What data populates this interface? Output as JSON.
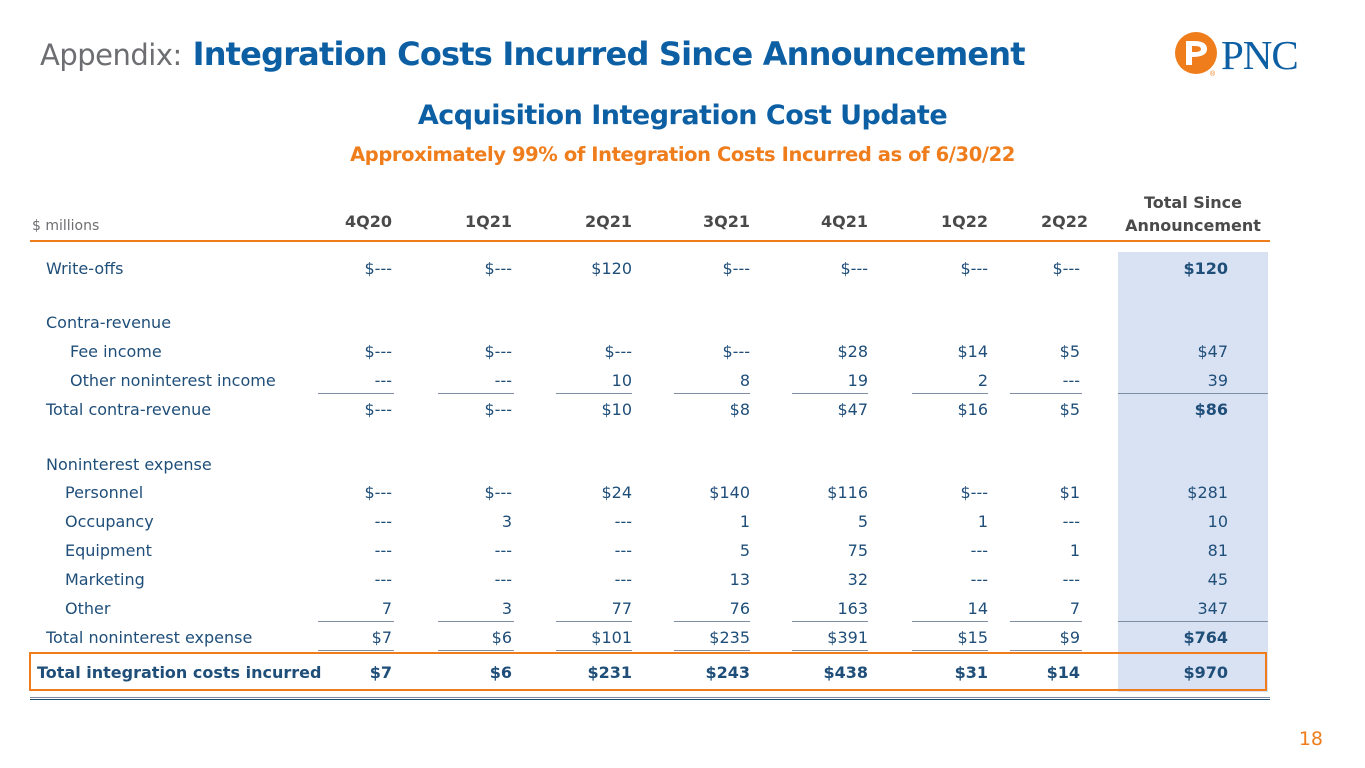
{
  "header": {
    "prefix": "Appendix:",
    "title": "Integration Costs Incurred Since Announcement",
    "logo_text": "PNC",
    "logo_reg": "®"
  },
  "subtitle": "Acquisition Integration Cost Update",
  "subsubtitle": "Approximately 99% of Integration Costs Incurred as of 6/30/22",
  "units": "$ millions",
  "columns": [
    "4Q20",
    "1Q21",
    "2Q21",
    "3Q21",
    "4Q21",
    "1Q22",
    "2Q22"
  ],
  "total_header": [
    "Total Since",
    "Announcement"
  ],
  "rows": {
    "write_offs": {
      "label": "Write-offs",
      "values": [
        "$---",
        "$---",
        "$120",
        "$---",
        "$---",
        "$---",
        "$---"
      ],
      "total": "$120"
    },
    "contra_revenue": {
      "label": "Contra-revenue"
    },
    "fee_income": {
      "label": "Fee income",
      "values": [
        "$---",
        "$---",
        "$---",
        "$---",
        "$28",
        "$14",
        "$5"
      ],
      "total": "$47"
    },
    "other_nonint_income": {
      "label": "Other noninterest income",
      "values": [
        "---",
        "---",
        "10",
        "8",
        "19",
        "2",
        "---"
      ],
      "total": "39"
    },
    "total_contra": {
      "label": "Total contra-revenue",
      "values": [
        "$---",
        "$---",
        "$10",
        "$8",
        "$47",
        "$16",
        "$5"
      ],
      "total": "$86"
    },
    "nonint_expense": {
      "label": "Noninterest expense"
    },
    "personnel": {
      "label": "Personnel",
      "values": [
        "$---",
        "$---",
        "$24",
        "$140",
        "$116",
        "$---",
        "$1"
      ],
      "total": "$281"
    },
    "occupancy": {
      "label": "Occupancy",
      "values": [
        "---",
        "3",
        "---",
        "1",
        "5",
        "1",
        "---"
      ],
      "total": "10"
    },
    "equipment": {
      "label": "Equipment",
      "values": [
        "---",
        "---",
        "---",
        "5",
        "75",
        "---",
        "1"
      ],
      "total": "81"
    },
    "marketing": {
      "label": "Marketing",
      "values": [
        "---",
        "---",
        "---",
        "13",
        "32",
        "---",
        "---"
      ],
      "total": "45"
    },
    "other": {
      "label": "Other",
      "values": [
        "7",
        "3",
        "77",
        "76",
        "163",
        "14",
        "7"
      ],
      "total": "347"
    },
    "total_nonint": {
      "label": "Total noninterest expense",
      "values": [
        "$7",
        "$6",
        "$101",
        "$235",
        "$391",
        "$15",
        "$9"
      ],
      "total": "$764"
    },
    "total_integration": {
      "label": "Total integration costs incurred",
      "values": [
        "$7",
        "$6",
        "$231",
        "$243",
        "$438",
        "$31",
        "$14"
      ],
      "total": "$970"
    }
  },
  "page_number": "18",
  "colors": {
    "orange": "#ef7d1c",
    "blue": "#0d5fa4",
    "total_fill": "#d9e2f3"
  }
}
